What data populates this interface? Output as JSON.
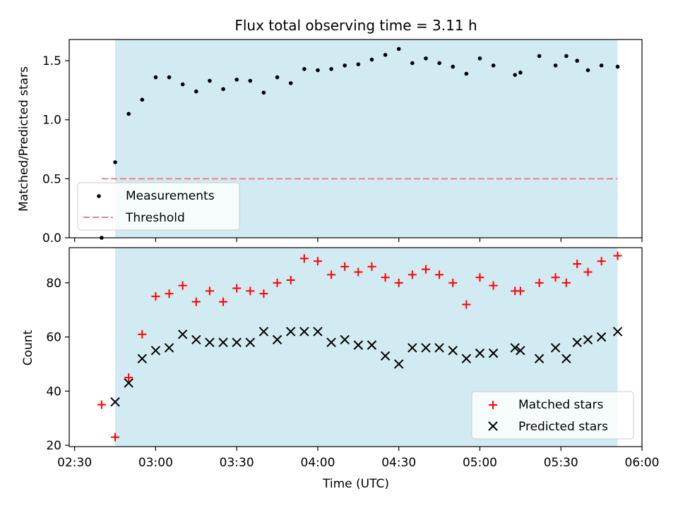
{
  "chart_data": [
    {
      "type": "scatter",
      "title": "Flux total observing time = 3.11 h",
      "xlabel": "",
      "ylabel": "Matched/Predicted stars",
      "xlim": [
        "02:28",
        "06:00"
      ],
      "ylim": [
        0,
        1.68
      ],
      "x_ticks": [
        "02:30",
        "03:00",
        "03:30",
        "04:00",
        "04:30",
        "05:00",
        "05:30",
        "06:00"
      ],
      "y_ticks": [
        "0.0",
        "0.5",
        "1.0",
        "1.5"
      ],
      "shaded_region": {
        "start": "02:45",
        "end": "05:51",
        "color": "#add8e6"
      },
      "series": [
        {
          "name": "Measurements",
          "marker": "dot",
          "color": "#000000",
          "x": [
            "02:40",
            "02:45",
            "02:50",
            "02:55",
            "03:00",
            "03:05",
            "03:10",
            "03:15",
            "03:20",
            "03:25",
            "03:30",
            "03:35",
            "03:40",
            "03:45",
            "03:50",
            "03:55",
            "04:00",
            "04:05",
            "04:10",
            "04:15",
            "04:20",
            "04:25",
            "04:30",
            "04:35",
            "04:40",
            "04:45",
            "04:50",
            "04:55",
            "05:00",
            "05:05",
            "05:13",
            "05:15",
            "05:22",
            "05:28",
            "05:32",
            "05:36",
            "05:40",
            "05:45",
            "05:51"
          ],
          "y": [
            0.0,
            0.64,
            1.05,
            1.17,
            1.36,
            1.36,
            1.3,
            1.24,
            1.33,
            1.26,
            1.34,
            1.33,
            1.23,
            1.36,
            1.31,
            1.43,
            1.42,
            1.43,
            1.46,
            1.47,
            1.51,
            1.55,
            1.6,
            1.48,
            1.52,
            1.48,
            1.45,
            1.39,
            1.52,
            1.46,
            1.38,
            1.4,
            1.54,
            1.46,
            1.54,
            1.5,
            1.42,
            1.46,
            1.45
          ]
        },
        {
          "name": "Threshold",
          "type": "line",
          "style": "dashed",
          "color": "#f08080",
          "x": [
            "02:40",
            "05:51"
          ],
          "y": [
            0.5,
            0.5
          ]
        }
      ],
      "legend": "lower-left"
    },
    {
      "type": "scatter",
      "title": "",
      "xlabel": "Time (UTC)",
      "ylabel": "Count",
      "xlim": [
        "02:28",
        "06:00"
      ],
      "ylim": [
        19.5,
        93
      ],
      "x_ticks": [
        "02:30",
        "03:00",
        "03:30",
        "04:00",
        "04:30",
        "05:00",
        "05:30",
        "06:00"
      ],
      "y_ticks": [
        "20",
        "40",
        "60",
        "80"
      ],
      "shaded_region": {
        "start": "02:45",
        "end": "05:51",
        "color": "#add8e6"
      },
      "series": [
        {
          "name": "Matched stars",
          "marker": "plus",
          "color": "#ff0000",
          "x": [
            "02:40",
            "02:45",
            "02:50",
            "02:55",
            "03:00",
            "03:05",
            "03:10",
            "03:15",
            "03:20",
            "03:25",
            "03:30",
            "03:35",
            "03:40",
            "03:45",
            "03:50",
            "03:55",
            "04:00",
            "04:05",
            "04:10",
            "04:15",
            "04:20",
            "04:25",
            "04:30",
            "04:35",
            "04:40",
            "04:45",
            "04:50",
            "04:55",
            "05:00",
            "05:05",
            "05:13",
            "05:15",
            "05:22",
            "05:28",
            "05:32",
            "05:36",
            "05:40",
            "05:45",
            "05:51"
          ],
          "y": [
            35,
            23,
            45,
            61,
            75,
            76,
            79,
            73,
            77,
            73,
            78,
            77,
            76,
            80,
            81,
            89,
            88,
            83,
            86,
            84,
            86,
            82,
            80,
            83,
            85,
            83,
            80,
            72,
            82,
            79,
            77,
            77,
            80,
            82,
            80,
            87,
            84,
            88,
            90
          ]
        },
        {
          "name": "Predicted stars",
          "marker": "x",
          "color": "#000000",
          "x": [
            "02:45",
            "02:50",
            "02:55",
            "03:00",
            "03:05",
            "03:10",
            "03:15",
            "03:20",
            "03:25",
            "03:30",
            "03:35",
            "03:40",
            "03:45",
            "03:50",
            "03:55",
            "04:00",
            "04:05",
            "04:10",
            "04:15",
            "04:20",
            "04:25",
            "04:30",
            "04:35",
            "04:40",
            "04:45",
            "04:50",
            "04:55",
            "05:00",
            "05:05",
            "05:13",
            "05:15",
            "05:22",
            "05:28",
            "05:32",
            "05:36",
            "05:40",
            "05:45",
            "05:51"
          ],
          "y": [
            36,
            43,
            52,
            55,
            56,
            61,
            59,
            58,
            58,
            58,
            58,
            62,
            59,
            62,
            62,
            62,
            58,
            59,
            57,
            57,
            53,
            50,
            56,
            56,
            56,
            55,
            52,
            54,
            54,
            56,
            55,
            52,
            56,
            52,
            58,
            59,
            60,
            62
          ]
        }
      ],
      "legend": "lower-right"
    }
  ]
}
